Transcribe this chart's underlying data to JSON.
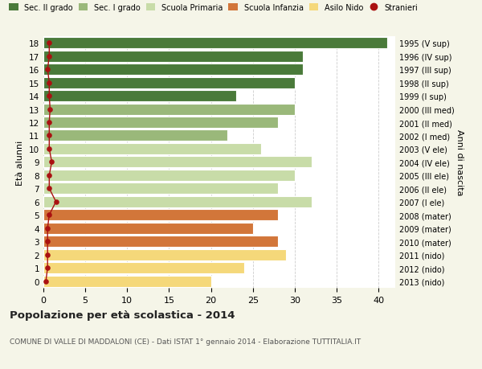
{
  "ages": [
    0,
    1,
    2,
    3,
    4,
    5,
    6,
    7,
    8,
    9,
    10,
    11,
    12,
    13,
    14,
    15,
    16,
    17,
    18
  ],
  "right_labels": [
    "2013 (nido)",
    "2012 (nido)",
    "2011 (nido)",
    "2010 (mater)",
    "2009 (mater)",
    "2008 (mater)",
    "2007 (I ele)",
    "2006 (II ele)",
    "2005 (III ele)",
    "2004 (IV ele)",
    "2003 (V ele)",
    "2002 (I med)",
    "2001 (II med)",
    "2000 (III med)",
    "1999 (I sup)",
    "1998 (II sup)",
    "1997 (III sup)",
    "1996 (IV sup)",
    "1995 (V sup)"
  ],
  "bar_values": [
    20,
    24,
    29,
    28,
    25,
    28,
    32,
    28,
    30,
    32,
    26,
    22,
    28,
    30,
    23,
    30,
    31,
    31,
    41
  ],
  "bar_colors": [
    "#f5d87a",
    "#f5d87a",
    "#f5d87a",
    "#d2763a",
    "#d2763a",
    "#d2763a",
    "#c8dca8",
    "#c8dca8",
    "#c8dca8",
    "#c8dca8",
    "#c8dca8",
    "#9ab87a",
    "#9ab87a",
    "#9ab87a",
    "#4a7a3a",
    "#4a7a3a",
    "#4a7a3a",
    "#4a7a3a",
    "#4a7a3a"
  ],
  "stranieri_x": [
    0.3,
    0.5,
    0.5,
    0.5,
    0.5,
    0.7,
    1.5,
    0.7,
    0.7,
    1.0,
    0.7,
    0.7,
    0.7,
    0.8,
    0.7,
    0.7,
    0.5,
    0.7,
    0.7
  ],
  "legend_labels": [
    "Sec. II grado",
    "Sec. I grado",
    "Scuola Primaria",
    "Scuola Infanzia",
    "Asilo Nido",
    "Stranieri"
  ],
  "legend_colors": [
    "#4a7a3a",
    "#9ab87a",
    "#c8dca8",
    "#d2763a",
    "#f5d87a",
    "#aa1111"
  ],
  "ylabel": "Età alunni",
  "right_ylabel": "Anni di nascita",
  "title": "Popolazione per età scolastica - 2014",
  "subtitle": "COMUNE DI VALLE DI MADDALONI (CE) - Dati ISTAT 1° gennaio 2014 - Elaborazione TUTTITALIA.IT",
  "xticks": [
    0,
    5,
    10,
    15,
    20,
    25,
    30,
    35,
    40
  ],
  "xlim": [
    0,
    42
  ],
  "background_color": "#f5f5e8",
  "plot_bg_color": "#ffffff",
  "grid_color": "#cccccc"
}
